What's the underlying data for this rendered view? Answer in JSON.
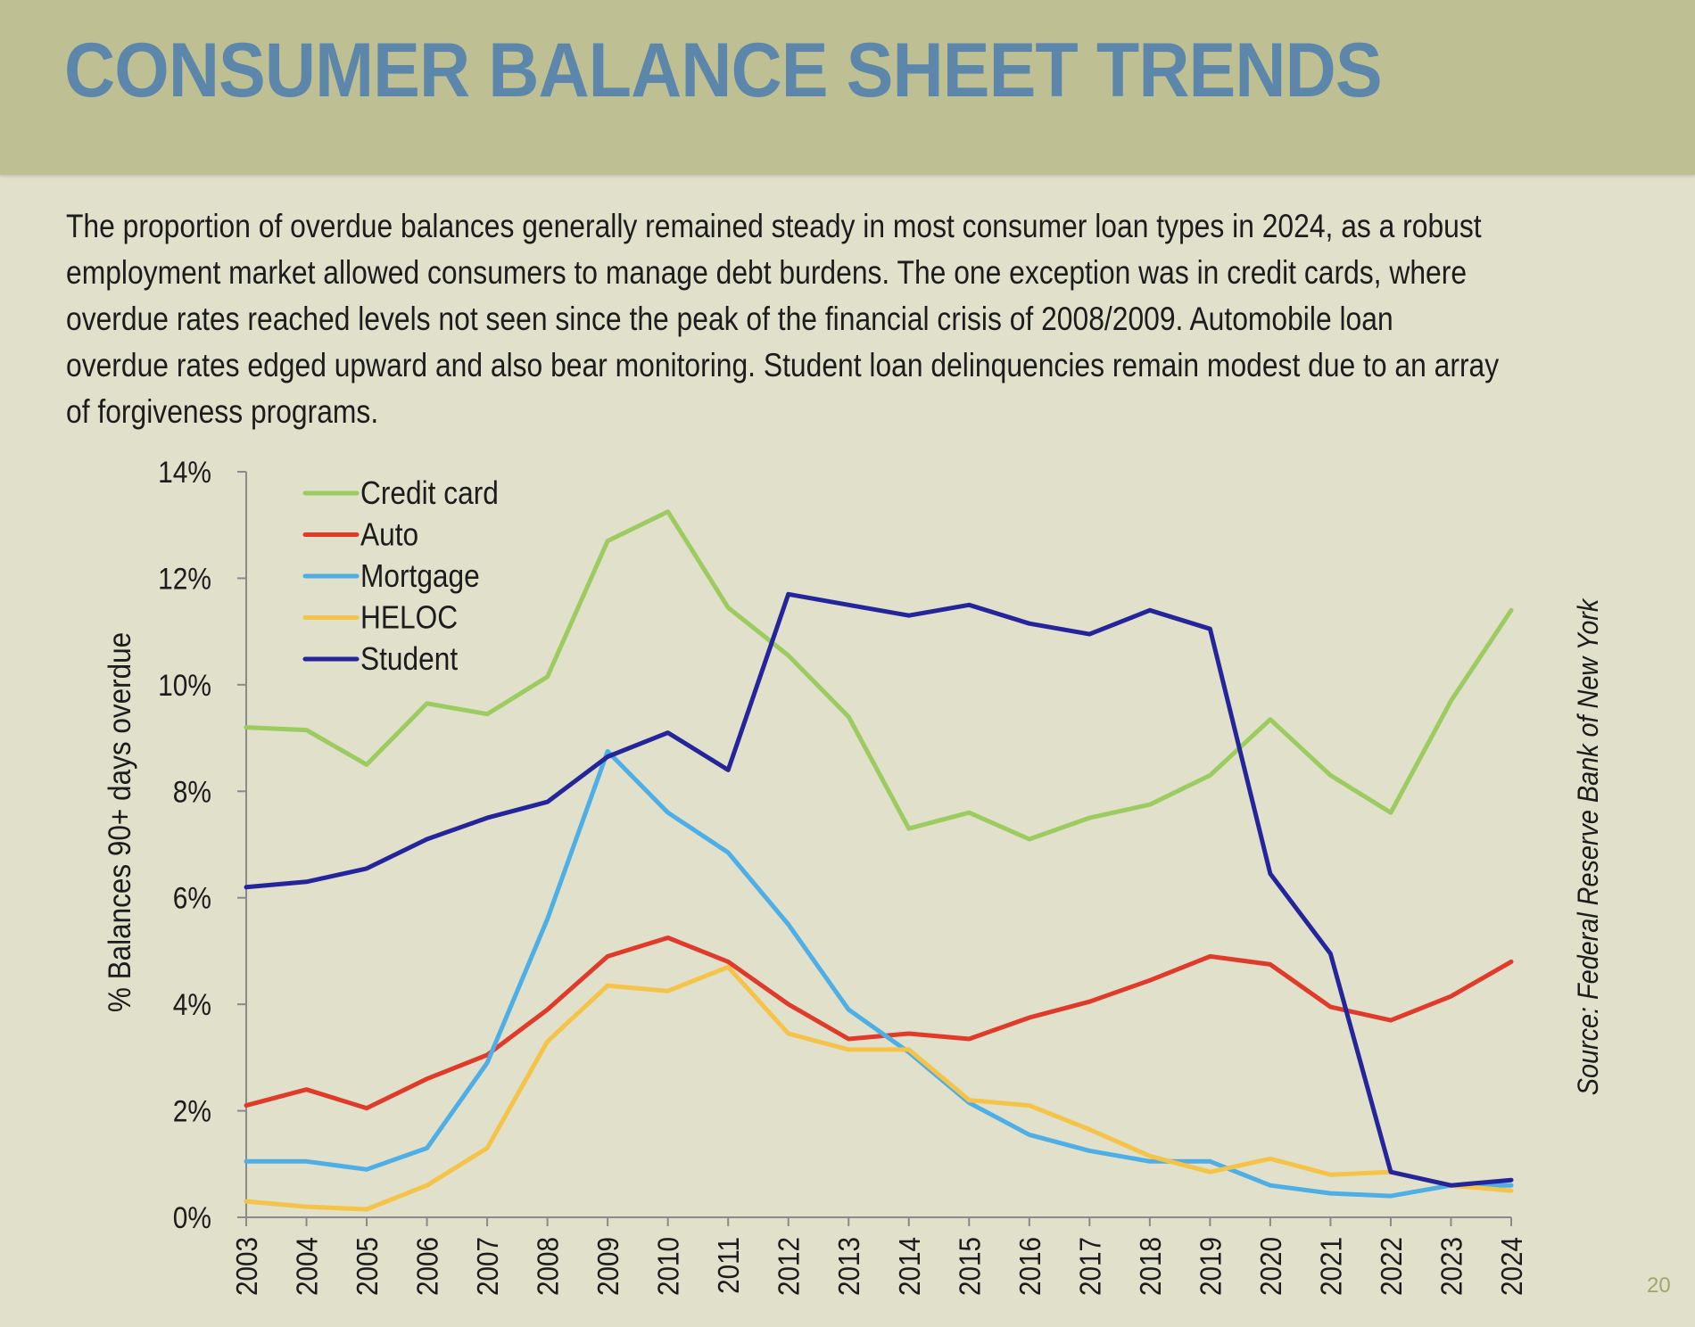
{
  "page": {
    "title": "CONSUMER BALANCE SHEET TRENDS",
    "intro_lines": [
      "The proportion of overdue balances generally remained steady in most consumer loan types in 2024, as a robust",
      "employment market allowed consumers to manage debt burdens.  The one exception was in credit cards, where",
      "overdue rates reached levels not seen since the peak of the financial crisis of 2008/2009.  Automobile loan",
      "overdue rates edged upward and also bear monitoring.  Student loan delinquencies remain modest due to an array",
      "of forgiveness programs."
    ],
    "page_number": "20",
    "colors": {
      "header_band": "#bec094",
      "background": "#e0e0cb",
      "title": "#5c87ab"
    }
  },
  "chart_data": {
    "type": "line",
    "title": "",
    "xlabel": "",
    "ylabel": "% Balances 90+ days overdue",
    "source": "Source: Federal Reserve Bank of New York",
    "ylim": [
      0,
      14
    ],
    "yticks": [
      0,
      2,
      4,
      6,
      8,
      10,
      12,
      14
    ],
    "ytick_labels": [
      "0%",
      "2%",
      "4%",
      "6%",
      "8%",
      "10%",
      "12%",
      "14%"
    ],
    "x": [
      "2003",
      "2004",
      "2005",
      "2006",
      "2007",
      "2008",
      "2009",
      "2010",
      "2011",
      "2012",
      "2013",
      "2014",
      "2015",
      "2016",
      "2017",
      "2018",
      "2019",
      "2020",
      "2021",
      "2022",
      "2023",
      "2024"
    ],
    "legend_position": "top-left",
    "grid": false,
    "series": [
      {
        "name": "Credit card",
        "color": "#9ccb5f",
        "values": [
          9.2,
          9.15,
          8.5,
          9.65,
          9.45,
          10.15,
          12.7,
          13.25,
          11.45,
          10.55,
          9.4,
          7.3,
          7.6,
          7.1,
          7.5,
          7.75,
          8.3,
          9.35,
          8.3,
          7.6,
          9.7,
          11.4
        ]
      },
      {
        "name": "Auto",
        "color": "#e03a2a",
        "values": [
          2.1,
          2.4,
          2.05,
          2.6,
          3.05,
          3.9,
          4.9,
          5.25,
          4.8,
          4.0,
          3.35,
          3.45,
          3.35,
          3.75,
          4.05,
          4.45,
          4.9,
          4.75,
          3.95,
          3.7,
          4.15,
          4.8
        ]
      },
      {
        "name": "Mortgage",
        "color": "#4eaee6",
        "values": [
          1.05,
          1.05,
          0.9,
          1.3,
          2.9,
          5.6,
          8.75,
          7.6,
          6.85,
          5.5,
          3.9,
          3.1,
          2.15,
          1.55,
          1.25,
          1.05,
          1.05,
          0.6,
          0.45,
          0.4,
          0.6,
          0.6
        ]
      },
      {
        "name": "HELOC",
        "color": "#f4c348",
        "values": [
          0.3,
          0.2,
          0.15,
          0.6,
          1.3,
          3.3,
          4.35,
          4.25,
          4.7,
          3.45,
          3.15,
          3.15,
          2.2,
          2.1,
          1.65,
          1.15,
          0.85,
          1.1,
          0.8,
          0.85,
          0.6,
          0.5
        ]
      },
      {
        "name": "Student",
        "color": "#25259b",
        "values": [
          6.2,
          6.3,
          6.55,
          7.1,
          7.5,
          7.8,
          8.65,
          9.1,
          8.4,
          11.7,
          11.5,
          11.3,
          11.5,
          11.15,
          10.95,
          11.4,
          11.05,
          6.45,
          4.95,
          0.85,
          0.6,
          0.7
        ]
      }
    ]
  }
}
